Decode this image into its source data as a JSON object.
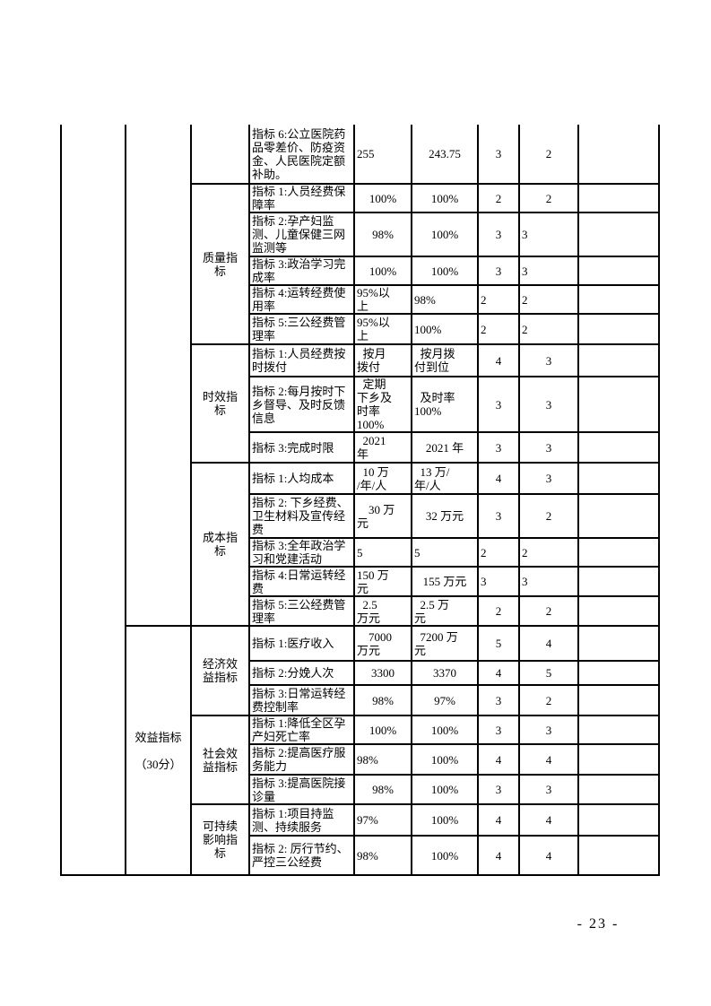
{
  "page": {
    "number_label": "- 23 -"
  },
  "table": {
    "left_margin_cell": "",
    "sections": [
      {
        "category_label": "",
        "groups": [
          {
            "label": "",
            "rows": [
              {
                "indicator": "指标 6:公立医院药品零差价、防疫资金、人民医院定额补助。",
                "target": "255",
                "actual": "243.75",
                "score": "3",
                "rating": "2",
                "note": ""
              }
            ]
          },
          {
            "label": "质量指\n标",
            "rows": [
              {
                "indicator": "指标 1:人员经费保障率",
                "target": "100%",
                "actual": "100%",
                "score": "2",
                "rating": "2",
                "note": ""
              },
              {
                "indicator": "指标 2:孕产妇监测、儿童保健三网监测等",
                "target": "98%",
                "actual": "100%",
                "score": "3",
                "rating": "3",
                "note": ""
              },
              {
                "indicator": "指标 3:政治学习完成率",
                "target": "100%",
                "actual": "100%",
                "score": "3",
                "rating": "3",
                "note": ""
              },
              {
                "indicator": "指标 4:运转经费使用率",
                "target": "95%以\n上",
                "actual": "98%",
                "score": "2",
                "rating": "2",
                "note": ""
              },
              {
                "indicator": "指标 5:三公经费管理率",
                "target": "95%以\n上",
                "actual": "100%",
                "score": "2",
                "rating": "2",
                "note": ""
              }
            ]
          },
          {
            "label": "时效指\n标",
            "rows": [
              {
                "indicator": "指标 1:人员经费按时拨付",
                "target": "  按月\n拨付",
                "actual": "  按月拨\n付到位",
                "score": "4",
                "rating": "3",
                "note": ""
              },
              {
                "indicator": "指标 2:每月按时下乡督导、及时反馈信息",
                "target": "  定期\n下乡及\n时率\n100%",
                "actual": "  及时率\n100%",
                "score": "3",
                "rating": "3",
                "note": ""
              },
              {
                "indicator": "指标 3:完成时限",
                "target": "  2021\n年",
                "actual": "2021 年",
                "score": "3",
                "rating": "3",
                "note": ""
              }
            ]
          },
          {
            "label": "成本指\n标",
            "rows": [
              {
                "indicator": "指标 1:人均成本",
                "target": "  10 万\n/年/人",
                "actual": "  13 万/\n年/人",
                "score": "4",
                "rating": "3",
                "note": ""
              },
              {
                "indicator": "指标 2: 下乡经费、卫生材料及宣传经费",
                "target": "    30 万\n元",
                "actual": "32 万元",
                "score": "3",
                "rating": "2",
                "note": ""
              },
              {
                "indicator": "指标 3:全年政治学习和党建活动",
                "target": "5",
                "actual": "5",
                "score": "2",
                "rating": "2",
                "note": ""
              },
              {
                "indicator": "指标 4:日常运转经费",
                "target": "150 万\n元",
                "actual": "155 万元",
                "score": "3",
                "rating": "3",
                "note": ""
              },
              {
                "indicator": "指标 5:三公经费管理率",
                "target": "  2.5\n万元",
                "actual": "  2.5 万\n元",
                "score": "2",
                "rating": "2",
                "note": ""
              }
            ]
          }
        ]
      },
      {
        "category_label": "效益指标\n\n（30分）",
        "groups": [
          {
            "label": "经济效\n益指标",
            "rows": [
              {
                "indicator": "指标 1:医疗收入",
                "target": "    7000\n万元",
                "actual": "  7200 万\n元",
                "score": "5",
                "rating": "4",
                "note": ""
              },
              {
                "indicator": "指标 2:分娩人次",
                "target": "3300",
                "actual": "3370",
                "score": "4",
                "rating": "5",
                "note": ""
              },
              {
                "indicator": "指标 3:日常运转经费控制率",
                "target": "98%",
                "actual": "97%",
                "score": "3",
                "rating": "2",
                "note": ""
              }
            ]
          },
          {
            "label": "社会效\n益指标",
            "rows": [
              {
                "indicator": "指标 1:降低全区孕产妇死亡率",
                "target": "100%",
                "actual": "100%",
                "score": "3",
                "rating": "3",
                "note": ""
              },
              {
                "indicator": "指标 2:提高医疗服务能力",
                "target": "98%",
                "actual": "100%",
                "score": "4",
                "rating": "4",
                "note": ""
              },
              {
                "indicator": "指标 3:提高医院接诊量",
                "target": "98%",
                "actual": "100%",
                "score": "3",
                "rating": "3",
                "note": ""
              }
            ]
          },
          {
            "label": "可持续\n影响指\n标",
            "rows": [
              {
                "indicator": "指标 1:项目持监测、持续服务",
                "target": "97%",
                "actual": "100%",
                "score": "4",
                "rating": "4",
                "note": ""
              },
              {
                "indicator": "指标 2: 厉行节约、严控三公经费",
                "target": "98%",
                "actual": "100%",
                "score": "4",
                "rating": "4",
                "note": ""
              }
            ]
          }
        ]
      }
    ]
  }
}
